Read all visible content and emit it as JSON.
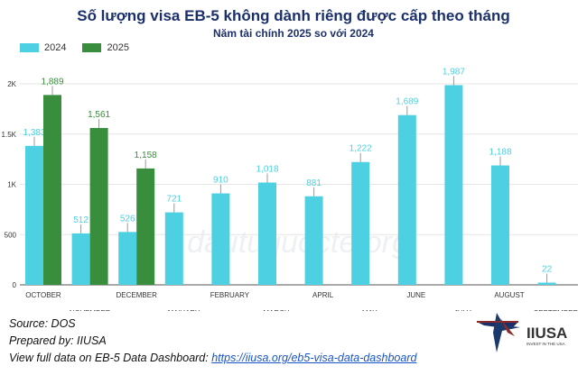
{
  "title": "Số lượng visa EB-5 không dành riêng được cấp theo tháng",
  "subtitle": "Năm tài chính 2025 so với 2024",
  "footer": {
    "source": "Source: DOS",
    "prepared": "Prepared by: IIUSA",
    "view_label": "View full data on EB-5 Data Dashboard:",
    "link": "https://iiusa.org/eb5-visa-data-dashboard"
  },
  "logo": {
    "name": "IIUSA",
    "tagline": "INVEST IN THE USA"
  },
  "watermark": "dautuquocte.org",
  "chart_data": {
    "type": "bar",
    "title": "Số lượng visa EB-5 không dành riêng được cấp theo tháng",
    "categories": [
      "OCTOBER",
      "NOVEMBER",
      "DECEMBER",
      "JANUARY",
      "FEBRUARY",
      "MARCH",
      "APRIL",
      "MAY",
      "JUNE",
      "JULY",
      "AUGUST",
      "SEPTEMBER"
    ],
    "series": [
      {
        "name": "2024",
        "color": "#4dd0e1",
        "values": [
          1383,
          512,
          526,
          721,
          910,
          1018,
          881,
          1222,
          1689,
          1987,
          1188,
          22
        ],
        "labels": [
          "1,383",
          "512",
          "526",
          "721",
          "910",
          "1,018",
          "881",
          "1,222",
          "1,689",
          "1,987",
          "1,188",
          "22"
        ]
      },
      {
        "name": "2025",
        "color": "#388e3c",
        "values": [
          1889,
          1561,
          1158,
          null,
          null,
          null,
          null,
          null,
          null,
          null,
          null,
          null
        ],
        "labels": [
          "1,889",
          "1,561",
          "1,158"
        ]
      }
    ],
    "yticks": [
      {
        "v": 0,
        "label": "0"
      },
      {
        "v": 500,
        "label": "500"
      },
      {
        "v": 1000,
        "label": "1K"
      },
      {
        "v": 1500,
        "label": "1.5K"
      },
      {
        "v": 2000,
        "label": "2K"
      }
    ],
    "ylim": [
      0,
      2000
    ],
    "legend": "top-left",
    "grid": true
  }
}
